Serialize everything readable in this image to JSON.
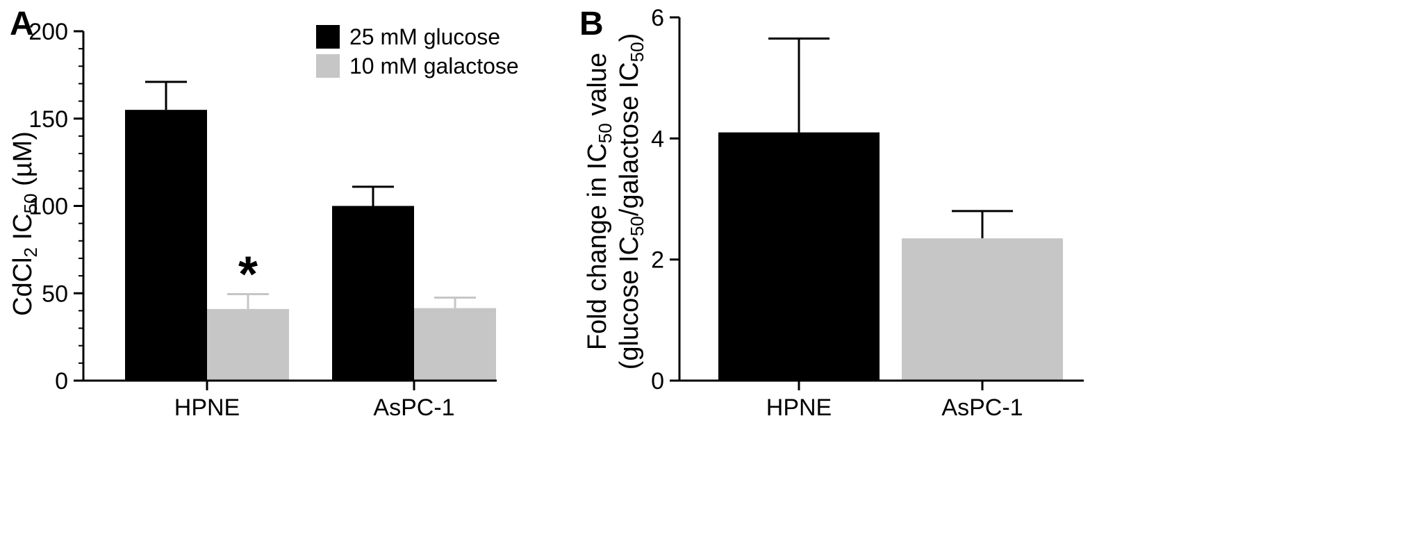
{
  "chart_data": [
    {
      "type": "bar",
      "panel_label": "A",
      "ylabel": {
        "main": "CdCl",
        "sub1": "2",
        "mid": " IC",
        "sub2": "50",
        "unit": " (µM)"
      },
      "categories": [
        "HPNE",
        "AsPC-1"
      ],
      "series": [
        {
          "name": "25 mM glucose",
          "values": [
            155,
            100
          ],
          "errors": [
            16,
            11
          ],
          "color": "#000000"
        },
        {
          "name": "10 mM galactose",
          "values": [
            41,
            41.5
          ],
          "errors": [
            8.5,
            6
          ],
          "color": "#c6c6c6"
        }
      ],
      "ylim": [
        0,
        200
      ],
      "yticks": [
        0,
        50,
        100,
        150,
        200
      ],
      "yticks_labels": [
        "0",
        "50",
        "100",
        "150",
        "200"
      ],
      "legend_position": "top-right",
      "annotations": [
        {
          "text": "*",
          "category": "HPNE",
          "series": "10 mM galactose"
        }
      ]
    },
    {
      "type": "bar",
      "panel_label": "B",
      "ylabel_line1": {
        "pre": "Fold change in IC",
        "sub": "50",
        "post": " value"
      },
      "ylabel_line2": {
        "pre": "(glucose IC",
        "sub1": "50",
        "mid": "/galactose IC",
        "sub2": "50",
        "post": ")"
      },
      "categories": [
        "HPNE",
        "AsPC-1"
      ],
      "values": [
        4.1,
        2.35
      ],
      "errors": [
        1.55,
        0.45
      ],
      "colors": [
        "#000000",
        "#c6c6c6"
      ],
      "ylim": [
        0,
        6
      ],
      "yticks": [
        0,
        2,
        4,
        6
      ],
      "yticks_labels": [
        "0",
        "2",
        "4",
        "6"
      ]
    }
  ]
}
